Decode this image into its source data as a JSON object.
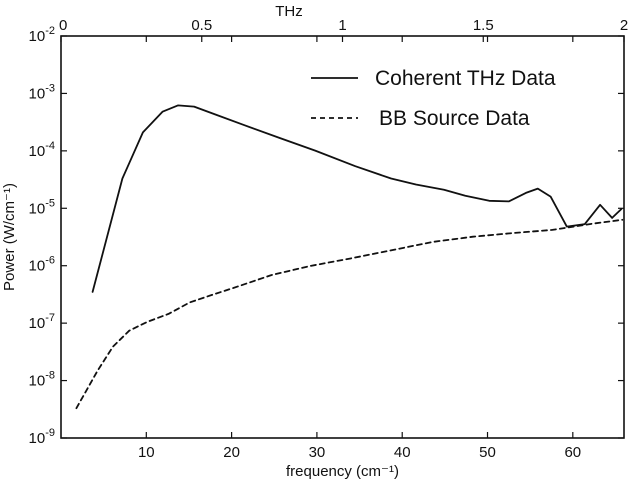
{
  "chart_data": {
    "type": "line",
    "title": "",
    "xlabel": "frequency (cm⁻¹)",
    "ylabel": "Power (W/cm⁻¹)",
    "x2label": "THz",
    "xlim": [
      0,
      66
    ],
    "ylim": [
      1e-09,
      0.01
    ],
    "yscale": "log",
    "x2lim": [
      0,
      2
    ],
    "grid": false,
    "legend_position": "top-right",
    "x_ticks": [
      {
        "value": 10,
        "label": "10"
      },
      {
        "value": 20,
        "label": "20"
      },
      {
        "value": 30,
        "label": "30"
      },
      {
        "value": 40,
        "label": "40"
      },
      {
        "value": 50,
        "label": "50"
      },
      {
        "value": 60,
        "label": "60"
      }
    ],
    "x2_ticks": [
      {
        "value": 0,
        "label": "0"
      },
      {
        "value": 0.5,
        "label": "0.5"
      },
      {
        "value": 1,
        "label": "1"
      },
      {
        "value": 1.5,
        "label": "1.5"
      },
      {
        "value": 2,
        "label": "2"
      }
    ],
    "y_ticks": [
      {
        "value": 1e-09,
        "base": "10",
        "exp": "-9"
      },
      {
        "value": 1e-08,
        "base": "10",
        "exp": "-8"
      },
      {
        "value": 1e-07,
        "base": "10",
        "exp": "-7"
      },
      {
        "value": 1e-06,
        "base": "10",
        "exp": "-6"
      },
      {
        "value": 1e-05,
        "base": "10",
        "exp": "-5"
      },
      {
        "value": 0.0001,
        "base": "10",
        "exp": "-4"
      },
      {
        "value": 0.001,
        "base": "10",
        "exp": "-3"
      },
      {
        "value": 0.01,
        "base": "10",
        "exp": "-2"
      }
    ],
    "series": [
      {
        "name": "Coherent THz Data",
        "style": "solid",
        "color": "#111111",
        "x": [
          3.7,
          7.2,
          9.6,
          11.9,
          13.7,
          15.6,
          18.1,
          21.5,
          25.6,
          29.8,
          34.5,
          38.7,
          41.6,
          44.9,
          47.4,
          50.2,
          52.5,
          54.5,
          55.9,
          57.4,
          59.3,
          61.4,
          63.2,
          64.6,
          65.7
        ],
        "y": [
          3.5e-07,
          3.3e-05,
          0.00021,
          0.00048,
          0.00062,
          0.00059,
          0.00043,
          0.00028,
          0.000168,
          0.000101,
          5.4e-05,
          3.3e-05,
          2.6e-05,
          2.1e-05,
          1.65e-05,
          1.35e-05,
          1.32e-05,
          1.85e-05,
          2.2e-05,
          1.6e-05,
          4.8e-06,
          5.3e-06,
          1.15e-05,
          6.8e-06,
          9.7e-06
        ]
      },
      {
        "name": "BB Source Data",
        "style": "dashed",
        "color": "#111111",
        "x": [
          1.8,
          4.3,
          6.1,
          8.0,
          10.1,
          12.6,
          15.1,
          17.7,
          20.2,
          24.7,
          29.2,
          34.1,
          38.9,
          43.6,
          48.3,
          52.9,
          57.6,
          62.3,
          65.8
        ],
        "y": [
          3.3e-09,
          1.5e-08,
          3.9e-08,
          7.4e-08,
          1.05e-07,
          1.45e-07,
          2.3e-07,
          3.1e-07,
          4.1e-07,
          6.9e-07,
          9.9e-07,
          1.35e-06,
          1.88e-06,
          2.6e-06,
          3.2e-06,
          3.7e-06,
          4.2e-06,
          5.4e-06,
          6.3e-06
        ]
      }
    ]
  }
}
